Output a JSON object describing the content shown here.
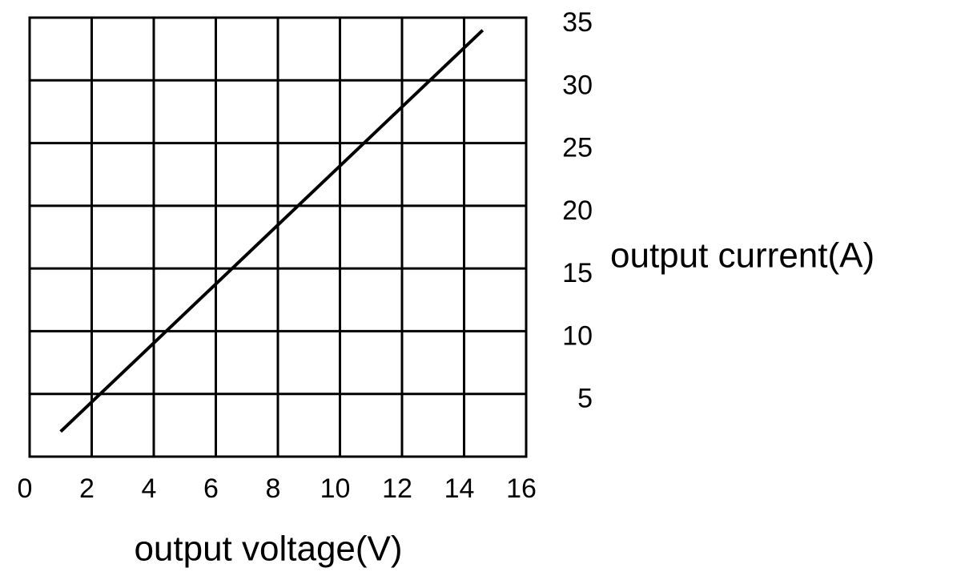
{
  "chart_data": {
    "type": "line",
    "x_label": "output voltage(V)",
    "y_label": "output current(A)",
    "x": [
      1,
      14.6
    ],
    "series": [
      {
        "values": [
          2,
          34
        ],
        "color": "#000000"
      }
    ],
    "xlim": [
      0,
      16
    ],
    "xticks": [
      0,
      2,
      4,
      6,
      8,
      10,
      12,
      14,
      16
    ],
    "ylim": [
      0,
      35
    ],
    "yticks": [
      5,
      10,
      15,
      20,
      25,
      30,
      35
    ],
    "grid": true,
    "y_axis_side": "right"
  }
}
